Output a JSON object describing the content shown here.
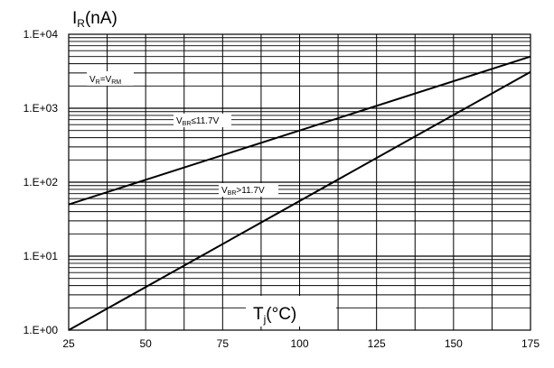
{
  "chart_data": {
    "type": "line",
    "title": "",
    "xlabel": "",
    "ylabel": "",
    "y_title": {
      "main": "I",
      "sub": "R",
      "rest": "(nA)"
    },
    "x_title": {
      "main": "T",
      "sub": "j",
      "rest": "(°C)"
    },
    "x_scale": "linear",
    "y_scale": "log",
    "xlim": [
      25,
      175
    ],
    "ylim": [
      1,
      10000
    ],
    "x_ticks": [
      25,
      50,
      75,
      100,
      125,
      150,
      175
    ],
    "x_tick_labels": [
      "25",
      "50",
      "75",
      "100",
      "125",
      "150",
      "175"
    ],
    "y_ticks": [
      1,
      10,
      100,
      1000,
      10000
    ],
    "y_tick_labels": [
      "1.E+00",
      "1.E+01",
      "1.E+02",
      "1.E+03",
      "1.E+04"
    ],
    "grid": true,
    "series": [
      {
        "name": "VBR≤11.7V",
        "label": {
          "main": "V",
          "sub": "BR",
          "rest": "≤11.7V"
        },
        "x": [
          25,
          175
        ],
        "y": [
          50,
          5000
        ]
      },
      {
        "name": "VBR>11.7V",
        "label": {
          "main": "V",
          "sub": "BR",
          "rest": ">11.7V"
        },
        "x": [
          25,
          175
        ],
        "y": [
          1,
          3100
        ]
      }
    ],
    "condition_label": {
      "a": "V",
      "a_sub": "R",
      "eq": "=",
      "b": "V",
      "b_sub": "RM"
    },
    "line_color": "#000000"
  }
}
